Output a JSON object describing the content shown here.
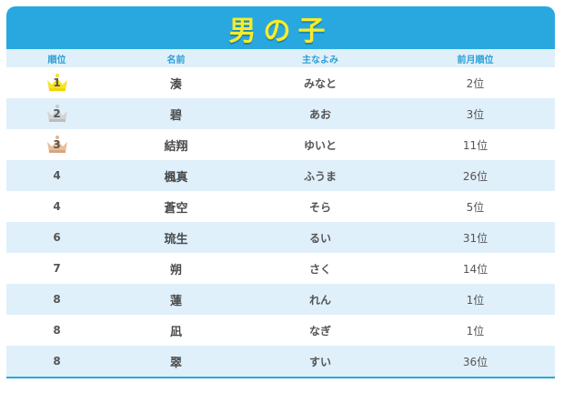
{
  "title": "男の子",
  "headers": {
    "rank": "順位",
    "name": "名前",
    "reading": "主なよみ",
    "prev_rank": "前月順位"
  },
  "crown_colors": {
    "gold": "#f7e22a",
    "silver": "#c9c9c9",
    "bronze": "#e2b48c"
  },
  "rows": [
    {
      "rank": "1",
      "name": "湊",
      "reading": "みなと",
      "prev": "2位",
      "crown": "gold-crown-icon"
    },
    {
      "rank": "2",
      "name": "碧",
      "reading": "あお",
      "prev": "3位",
      "crown": "silver-crown-icon"
    },
    {
      "rank": "3",
      "name": "結翔",
      "reading": "ゆいと",
      "prev": "11位",
      "crown": "bronze-crown-icon"
    },
    {
      "rank": "4",
      "name": "楓真",
      "reading": "ふうま",
      "prev": "26位"
    },
    {
      "rank": "4",
      "name": "蒼空",
      "reading": "そら",
      "prev": "5位"
    },
    {
      "rank": "6",
      "name": "琉生",
      "reading": "るい",
      "prev": "31位"
    },
    {
      "rank": "7",
      "name": "朔",
      "reading": "さく",
      "prev": "14位"
    },
    {
      "rank": "8",
      "name": "蓮",
      "reading": "れん",
      "prev": "1位"
    },
    {
      "rank": "8",
      "name": "凪",
      "reading": "なぎ",
      "prev": "1位"
    },
    {
      "rank": "8",
      "name": "翠",
      "reading": "すい",
      "prev": "36位"
    }
  ]
}
